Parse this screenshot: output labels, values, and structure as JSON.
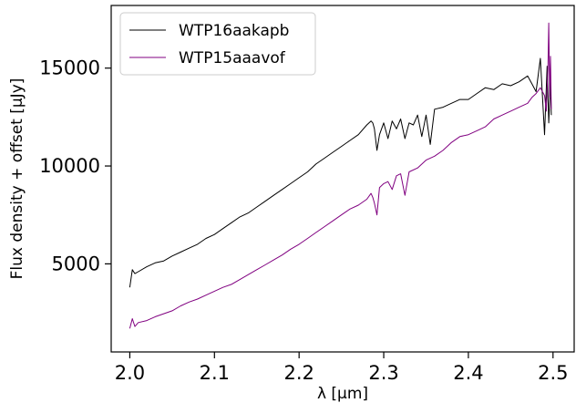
{
  "chart_data": {
    "type": "line",
    "title": "",
    "xlabel": "λ [μm]",
    "ylabel": "Flux density + offset [μJy]",
    "xlim": [
      1.978,
      2.525
    ],
    "ylim": [
      500,
      18200
    ],
    "grid": false,
    "legend_position": "top-left",
    "x_ticks": [
      {
        "value": 2.0,
        "label": "2.0"
      },
      {
        "value": 2.1,
        "label": "2.1"
      },
      {
        "value": 2.2,
        "label": "2.2"
      },
      {
        "value": 2.3,
        "label": "2.3"
      },
      {
        "value": 2.4,
        "label": "2.4"
      },
      {
        "value": 2.5,
        "label": "2.5"
      }
    ],
    "y_ticks": [
      {
        "value": 5000,
        "label": "5000"
      },
      {
        "value": 10000,
        "label": "10000"
      },
      {
        "value": 15000,
        "label": "15000"
      }
    ],
    "series": [
      {
        "name": "WTP16aakapb",
        "color": "#000000",
        "x": [
          2.0,
          2.003,
          2.006,
          2.01,
          2.02,
          2.03,
          2.04,
          2.05,
          2.06,
          2.07,
          2.08,
          2.09,
          2.1,
          2.11,
          2.12,
          2.13,
          2.14,
          2.15,
          2.16,
          2.17,
          2.18,
          2.19,
          2.2,
          2.21,
          2.22,
          2.23,
          2.24,
          2.25,
          2.26,
          2.27,
          2.28,
          2.285,
          2.287,
          2.289,
          2.292,
          2.295,
          2.3,
          2.305,
          2.31,
          2.315,
          2.32,
          2.325,
          2.33,
          2.335,
          2.34,
          2.345,
          2.35,
          2.355,
          2.36,
          2.37,
          2.38,
          2.39,
          2.4,
          2.41,
          2.42,
          2.43,
          2.44,
          2.45,
          2.46,
          2.47,
          2.475,
          2.48,
          2.485,
          2.49,
          2.493,
          2.495,
          2.497,
          2.498
        ],
        "y": [
          3800,
          4700,
          4500,
          4600,
          4850,
          5050,
          5150,
          5400,
          5600,
          5800,
          6000,
          6300,
          6500,
          6800,
          7100,
          7400,
          7600,
          7900,
          8200,
          8500,
          8800,
          9100,
          9400,
          9700,
          10100,
          10400,
          10700,
          11000,
          11300,
          11600,
          12100,
          12300,
          12200,
          11900,
          10800,
          11600,
          12200,
          11400,
          12300,
          11900,
          12400,
          11400,
          12200,
          12100,
          12600,
          11500,
          12600,
          11100,
          12900,
          13000,
          13200,
          13400,
          13400,
          13700,
          14000,
          13900,
          14200,
          14100,
          14300,
          14600,
          14200,
          13800,
          15500,
          11600,
          15100,
          12200,
          14300,
          12600
        ]
      },
      {
        "name": "WTP15aaavof",
        "color": "#800080",
        "x": [
          2.0,
          2.003,
          2.006,
          2.01,
          2.02,
          2.03,
          2.04,
          2.05,
          2.06,
          2.07,
          2.08,
          2.09,
          2.1,
          2.11,
          2.12,
          2.13,
          2.14,
          2.15,
          2.16,
          2.17,
          2.18,
          2.19,
          2.2,
          2.21,
          2.22,
          2.23,
          2.24,
          2.25,
          2.26,
          2.27,
          2.28,
          2.285,
          2.287,
          2.289,
          2.292,
          2.295,
          2.3,
          2.305,
          2.31,
          2.315,
          2.32,
          2.325,
          2.33,
          2.34,
          2.35,
          2.36,
          2.37,
          2.38,
          2.39,
          2.4,
          2.41,
          2.42,
          2.43,
          2.44,
          2.45,
          2.46,
          2.47,
          2.475,
          2.48,
          2.485,
          2.49,
          2.492,
          2.494,
          2.495,
          2.496,
          2.497,
          2.498
        ],
        "y": [
          1700,
          2200,
          1800,
          2000,
          2100,
          2300,
          2450,
          2600,
          2850,
          3050,
          3200,
          3400,
          3600,
          3800,
          3950,
          4200,
          4450,
          4700,
          4950,
          5200,
          5450,
          5750,
          6000,
          6300,
          6600,
          6900,
          7200,
          7500,
          7800,
          8000,
          8300,
          8600,
          8400,
          8100,
          7500,
          8900,
          9100,
          9200,
          8800,
          9500,
          9600,
          8500,
          9700,
          9900,
          10300,
          10500,
          10800,
          11200,
          11500,
          11600,
          11800,
          12000,
          12400,
          12600,
          12800,
          13000,
          13200,
          13500,
          13700,
          14000,
          13600,
          12800,
          15000,
          17300,
          13500,
          15600,
          12900
        ]
      }
    ]
  }
}
